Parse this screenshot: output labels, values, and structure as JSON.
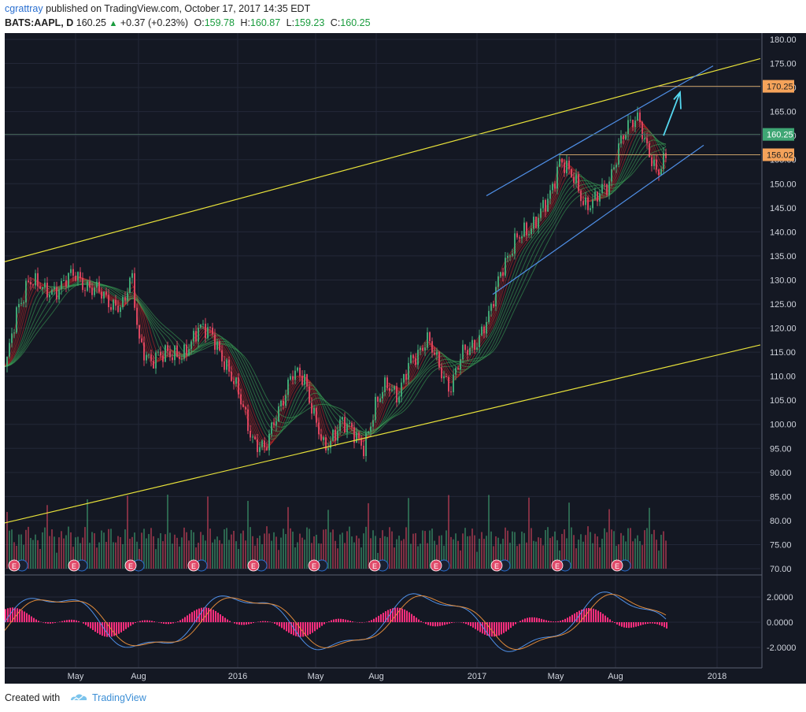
{
  "header": {
    "author": "cgrattray",
    "published_text": "published on TradingView.com, October 17, 2017 14:35 EDT",
    "symbol": "BATS:AAPL, D",
    "last": "160.25",
    "change": "+0.37 (+0.23%)",
    "o_label": "O:",
    "o_value": "159.78",
    "h_label": "H:",
    "h_value": "160.87",
    "l_label": "L:",
    "l_value": "159.23",
    "c_label": "C:",
    "c_value": "160.25"
  },
  "price_axis": {
    "ticks": [
      "180.00",
      "175.00",
      "170.00",
      "165.00",
      "160.00",
      "155.00",
      "150.00",
      "145.00",
      "140.00",
      "135.00",
      "130.00",
      "125.00",
      "120.00",
      "115.00",
      "110.00",
      "105.00",
      "100.00",
      "95.00",
      "90.00",
      "85.00",
      "80.00",
      "75.00",
      "70.00"
    ],
    "labels": [
      {
        "text": "170.25",
        "color": "#f5a35a"
      },
      {
        "text": "160.25",
        "color": "#3fa674"
      },
      {
        "text": "156.02",
        "color": "#f5a35a"
      }
    ]
  },
  "osc_axis": {
    "ticks": [
      "2.0000",
      "0.0000",
      "-2.0000"
    ]
  },
  "time_axis": {
    "ticks": [
      "May",
      "Aug",
      "2016",
      "May",
      "Aug",
      "2017",
      "May",
      "Aug",
      "2018"
    ]
  },
  "earnings_marker": "E",
  "colors": {
    "background": "#141823",
    "grid": "#232838",
    "channel": "#e8e23a",
    "trend": "#4f8fe6",
    "arrow": "#55d8f0",
    "hline": "#c8a06a",
    "up": "#3fa674",
    "down": "#d9455f",
    "macd_hist": "#ff2e7e"
  },
  "footer": {
    "created": "Created with",
    "brand": "TradingView"
  }
}
